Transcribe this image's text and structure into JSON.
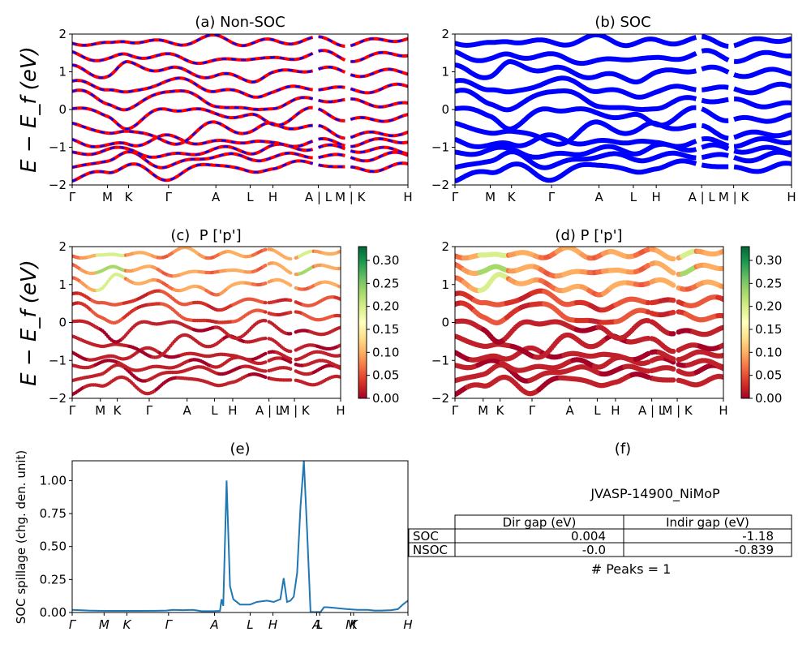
{
  "chart_data": [
    {
      "type": "line",
      "panel": "a",
      "title": "(a) Non-SOC",
      "ylabel": "E − E_f (eV)",
      "ylim": [
        -2,
        2
      ],
      "yticks": [
        "2",
        "1",
        "0",
        "−1",
        "−2"
      ],
      "xticks": [
        "Γ",
        "M",
        "K",
        "Γ",
        "A",
        "L",
        "H",
        "A | L",
        "M | K",
        "H"
      ],
      "colors": {
        "spin_up": "#ff0000",
        "spin_down": "#0000ff"
      },
      "line_style": "red solid overlaid with blue dashed (spin-degenerate bands)"
    },
    {
      "type": "line",
      "panel": "b",
      "title": "(b) SOC",
      "ylim": [
        -2,
        2
      ],
      "yticks": [
        "2",
        "1",
        "0",
        "−1",
        "−2"
      ],
      "xticks": [
        "Γ",
        "M",
        "K",
        "Γ",
        "A",
        "L",
        "H",
        "A | L",
        "M | K",
        "H"
      ],
      "colors": {
        "bands": "#0000ff"
      }
    },
    {
      "type": "scatter",
      "panel": "c",
      "title": "(c)  P ['p']",
      "ylabel": "E − E_f (eV)",
      "ylim": [
        -2,
        2
      ],
      "yticks": [
        "2",
        "1",
        "0",
        "−1",
        "−2"
      ],
      "xticks": [
        "Γ",
        "M",
        "K",
        "Γ",
        "A",
        "L",
        "H",
        "A | L",
        "M | K",
        "H"
      ],
      "colorbar": {
        "colormap": "RdYlGn",
        "range": [
          0,
          0.33
        ],
        "ticks": [
          "0.30",
          "0.25",
          "0.20",
          "0.15",
          "0.10",
          "0.05",
          "0.00"
        ]
      }
    },
    {
      "type": "scatter",
      "panel": "d",
      "title": "(d) P ['p']",
      "ylim": [
        -2,
        2
      ],
      "yticks": [
        "2",
        "1",
        "0",
        "−1",
        "−2"
      ],
      "xticks": [
        "Γ",
        "M",
        "K",
        "Γ",
        "A",
        "L",
        "H",
        "A | L",
        "M | K",
        "H"
      ],
      "colorbar": {
        "colormap": "RdYlGn",
        "range": [
          0,
          0.33
        ],
        "ticks": [
          "0.30",
          "0.25",
          "0.20",
          "0.15",
          "0.10",
          "0.05",
          "0.00"
        ]
      }
    },
    {
      "type": "line",
      "panel": "e",
      "title": "(e)",
      "ylabel": "SOC spillage (chg. den. unit)",
      "ylim": [
        0,
        1.15
      ],
      "yticks": [
        "1.00",
        "0.75",
        "0.50",
        "0.25",
        "0.00"
      ],
      "xticks": [
        "Γ",
        "M",
        "K",
        "Γ",
        "A",
        "L",
        "H",
        "A",
        "L",
        "M",
        "K",
        "H"
      ],
      "color": "#1f77b4",
      "series": [
        {
          "x": [
            0,
            0.05,
            0.1,
            0.15,
            0.2,
            0.25,
            0.28,
            0.3,
            0.33,
            0.36,
            0.38,
            0.385,
            0.39,
            0.4,
            0.42,
            0.44,
            0.445,
            0.45,
            0.46,
            0.47,
            0.48,
            0.5,
            0.53,
            0.55,
            0.58,
            0.6,
            0.62,
            0.63,
            0.64,
            0.65,
            0.66,
            0.67,
            0.68,
            0.69,
            0.7,
            0.71,
            0.72,
            0.74,
            0.75,
            0.76,
            0.78,
            0.8,
            0.82,
            0.85,
            0.88,
            0.9,
            0.92,
            0.95,
            0.97,
            0.985,
            1.0
          ],
          "values": [
            0.02,
            0.015,
            0.012,
            0.012,
            0.012,
            0.013,
            0.015,
            0.02,
            0.018,
            0.02,
            0.012,
            0.01,
            0.01,
            0.01,
            0.01,
            0.012,
            0.1,
            0.05,
            1.0,
            0.2,
            0.1,
            0.06,
            0.06,
            0.08,
            0.09,
            0.08,
            0.1,
            0.26,
            0.08,
            0.09,
            0.12,
            0.3,
            0.8,
            1.15,
            0.6,
            0.005,
            0.003,
            0.005,
            0.04,
            0.04,
            0.035,
            0.03,
            0.025,
            0.02,
            0.02,
            0.015,
            0.015,
            0.018,
            0.025,
            0.06,
            0.09
          ]
        }
      ]
    }
  ],
  "panel_f": {
    "title": "(f)",
    "material": "JVASP-14900_NiMoP",
    "table": {
      "headers": [
        "",
        "Dir gap (eV)",
        "Indir gap (eV)"
      ],
      "rows": [
        [
          "SOC",
          "0.004",
          "-1.18"
        ],
        [
          "NSOC",
          "-0.0",
          "-0.839"
        ]
      ]
    },
    "peaks": "# Peaks = 1"
  }
}
